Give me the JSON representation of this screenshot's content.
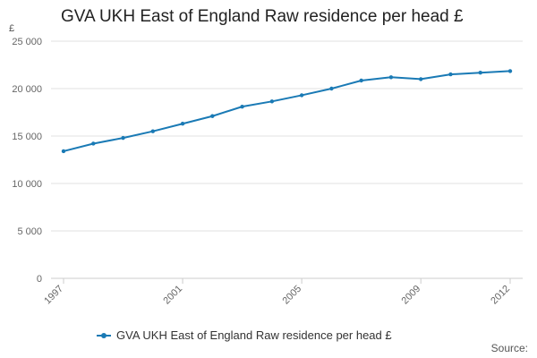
{
  "title": "GVA UKH East of England Raw residence per head £",
  "unit_label": "£",
  "source_label": "Source:",
  "legend": {
    "label": "GVA UKH East of England Raw residence per head £"
  },
  "colors": {
    "series": "#1a7ab5",
    "grid": "#e2e2e2",
    "axis": "#cccccc",
    "tick_text": "#666666"
  },
  "chart_data": {
    "type": "line",
    "title": "GVA UKH East of England Raw residence per head £",
    "xlabel": "",
    "ylabel": "£",
    "x": [
      1997,
      1998,
      1999,
      2000,
      2001,
      2002,
      2003,
      2004,
      2005,
      2006,
      2007,
      2008,
      2009,
      2010,
      2011,
      2012
    ],
    "series": [
      {
        "name": "GVA UKH East of England Raw residence per head £",
        "values": [
          13400,
          14200,
          14800,
          15500,
          16300,
          17100,
          18100,
          18650,
          19300,
          20000,
          20850,
          21200,
          21000,
          21500,
          21680,
          21850
        ]
      }
    ],
    "ylim": [
      0,
      25000
    ],
    "yticks": [
      0,
      5000,
      10000,
      15000,
      20000,
      25000
    ],
    "ytick_labels": [
      "0",
      "5 000",
      "10 000",
      "15 000",
      "20 000",
      "25 000"
    ],
    "xticks": [
      1997,
      2001,
      2005,
      2009,
      2012
    ],
    "xtick_labels": [
      "1997",
      "2001",
      "2005",
      "2009",
      "2012"
    ],
    "grid": true,
    "legend_position": "bottom"
  }
}
